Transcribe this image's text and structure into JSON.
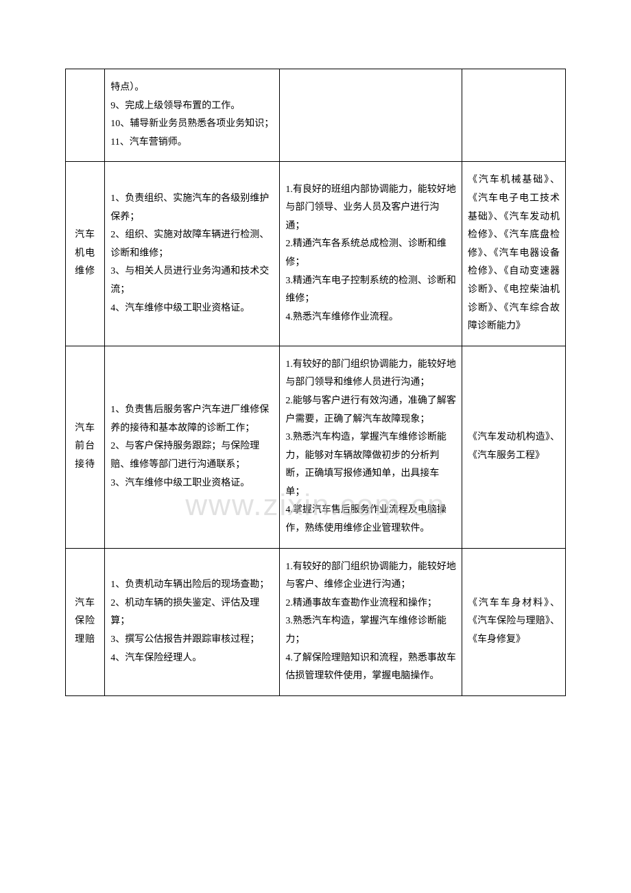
{
  "watermark": "www.zixin.com.cn",
  "table": {
    "rows": [
      {
        "col1": "",
        "col2": "特点）。\n9、完成上级领导布置的工作。\n10、辅导新业务员熟悉各项业务知识；\n11、汽车营销师。",
        "col3": "",
        "col4": ""
      },
      {
        "col1": "汽车\n机电\n维修",
        "col2": "1、负责组织、实施汽车的各级别维护保养；\n2、组织、实施对故障车辆进行检测、诊断和维修；\n3、与相关人员进行业务沟通和技术交流；\n4、汽车维修中级工职业资格证。",
        "col3": "1.有良好的班组内部协调能力，能较好地与部门领导、业务人员及客户进行沟通；\n2.精通汽车各系统总成检测、诊断和维修；\n3.精通汽车电子控制系统的检测、诊断和维修；\n4.熟悉汽车维修作业流程。",
        "col4": "《汽车机械基础》、《汽车电子电工技术基础》、《汽车发动机检修》、《汽车底盘检修》、《汽车电器设备检修》、《自动变速器诊断》、《电控柴油机诊断》、《汽车综合故障诊断能力》"
      },
      {
        "col1": "汽车\n前台\n接待",
        "col2": "1、负责售后服务客户汽车进厂维修保养的接待和基本故障的诊断工作；\n2、与客户保持服务跟踪；与保险理赔、维修等部门进行沟通联系；\n3、汽车维修中级工职业资格证。",
        "col3": "1.有较好的部门组织协调能力，能较好地与部门领导和维修人员进行沟通；\n2.能够与客户进行有效沟通，准确了解客户需要，正确了解汽车故障现象；\n3.熟悉汽车构造，掌握汽车维修诊断能力，能够对车辆故障做初步的分析判断，正确填写报修通知单，出具接车单；\n4.掌握汽车售后服务作业流程及电脑操作，熟练使用维修企业管理软件。",
        "col4": "《汽车发动机构造》、《汽车服务工程》"
      },
      {
        "col1": "汽车\n保险\n理赔",
        "col2": "1、负责机动车辆出险后的现场查勘；\n2、机动车辆的损失鉴定、评估及理算；\n3、撰写公估报告并跟踪审核过程；\n4、汽车保险经理人。",
        "col3": "1.有较好的部门组织协调能力，能较好地与客户、维修企业进行沟通；\n2.精通事故车查勘作业流程和操作；\n3.熟悉汽车构造，掌握汽车维修诊断能力；\n4.了解保险理赔知识和流程，熟悉事故车估损管理软件使用，掌握电脑操作。",
        "col4": "《汽车车身材料》、《汽车保险与理赔》、《车身修复》"
      }
    ]
  }
}
